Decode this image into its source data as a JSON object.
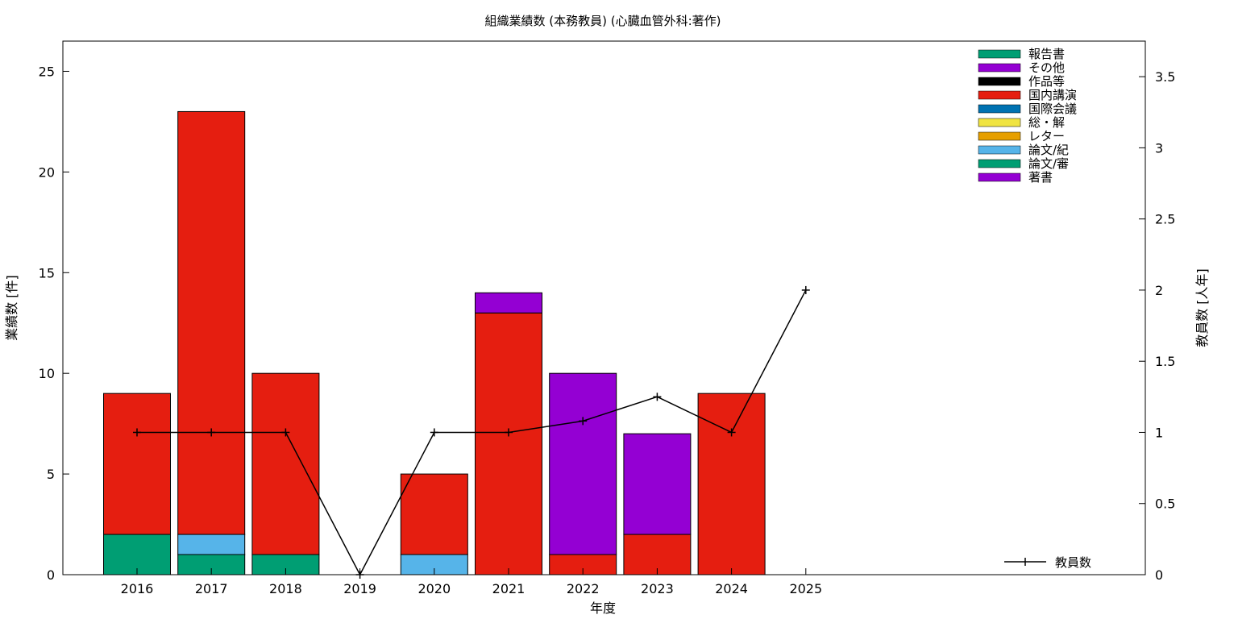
{
  "chart_data": {
    "type": "bar",
    "title": "組織業績数 (本務教員) (心臓血管外科:著作)",
    "xlabel": "年度",
    "ylabel": "業績数 [件]",
    "y2label": "教員数 [人年]",
    "categories": [
      "2016",
      "2017",
      "2018",
      "2019",
      "2020",
      "2021",
      "2022",
      "2023",
      "2024",
      "2025"
    ],
    "ylim": [
      0,
      26.5
    ],
    "y2lim": [
      0,
      3.75
    ],
    "yticks": [
      0,
      5,
      10,
      15,
      20,
      25
    ],
    "y2ticks": [
      0,
      0.5,
      1,
      1.5,
      2,
      2.5,
      3,
      3.5
    ],
    "y2tick_labels": [
      "0",
      "0.5",
      "1",
      "1.5",
      "2",
      "2.5",
      "3",
      "3.5"
    ],
    "stacked": true,
    "series": [
      {
        "name": "著書",
        "color": "#9400d3",
        "values": [
          0,
          0,
          0,
          0,
          0,
          0,
          0,
          0,
          0,
          0
        ]
      },
      {
        "name": "論文/審",
        "color": "#009e73",
        "values": [
          2,
          1,
          1,
          0,
          0,
          0,
          0,
          0,
          0,
          0
        ]
      },
      {
        "name": "論文/紀",
        "color": "#56b4e9",
        "values": [
          0,
          1,
          0,
          0,
          1,
          0,
          0,
          0,
          0,
          0
        ]
      },
      {
        "name": "レター",
        "color": "#e69f00",
        "values": [
          0,
          0,
          0,
          0,
          0,
          0,
          0,
          0,
          0,
          0
        ]
      },
      {
        "name": "総・解",
        "color": "#f0e442",
        "values": [
          0,
          0,
          0,
          0,
          0,
          0,
          0,
          0,
          0,
          0
        ]
      },
      {
        "name": "国際会議",
        "color": "#0072b2",
        "values": [
          0,
          0,
          0,
          0,
          0,
          0,
          0,
          0,
          0,
          0
        ]
      },
      {
        "name": "国内講演",
        "color": "#e51e10",
        "values": [
          7,
          21,
          9,
          0,
          4,
          13,
          1,
          2,
          9,
          0
        ]
      },
      {
        "name": "作品等",
        "color": "#000000",
        "values": [
          0,
          0,
          0,
          0,
          0,
          0,
          0,
          0,
          0,
          0
        ]
      },
      {
        "name": "その他",
        "color": "#9400d3",
        "values": [
          0,
          0,
          0,
          0,
          0,
          1,
          9,
          5,
          0,
          0
        ]
      },
      {
        "name": "報告書",
        "color": "#009e73",
        "values": [
          0,
          0,
          0,
          0,
          0,
          0,
          0,
          0,
          0,
          0
        ]
      }
    ],
    "line_series": {
      "name": "教員数",
      "axis": "y2",
      "color": "#000000",
      "values": [
        1,
        1,
        1,
        0,
        1,
        1,
        1.08,
        1.25,
        1,
        2
      ]
    },
    "legend": "top-right",
    "grid": false
  }
}
